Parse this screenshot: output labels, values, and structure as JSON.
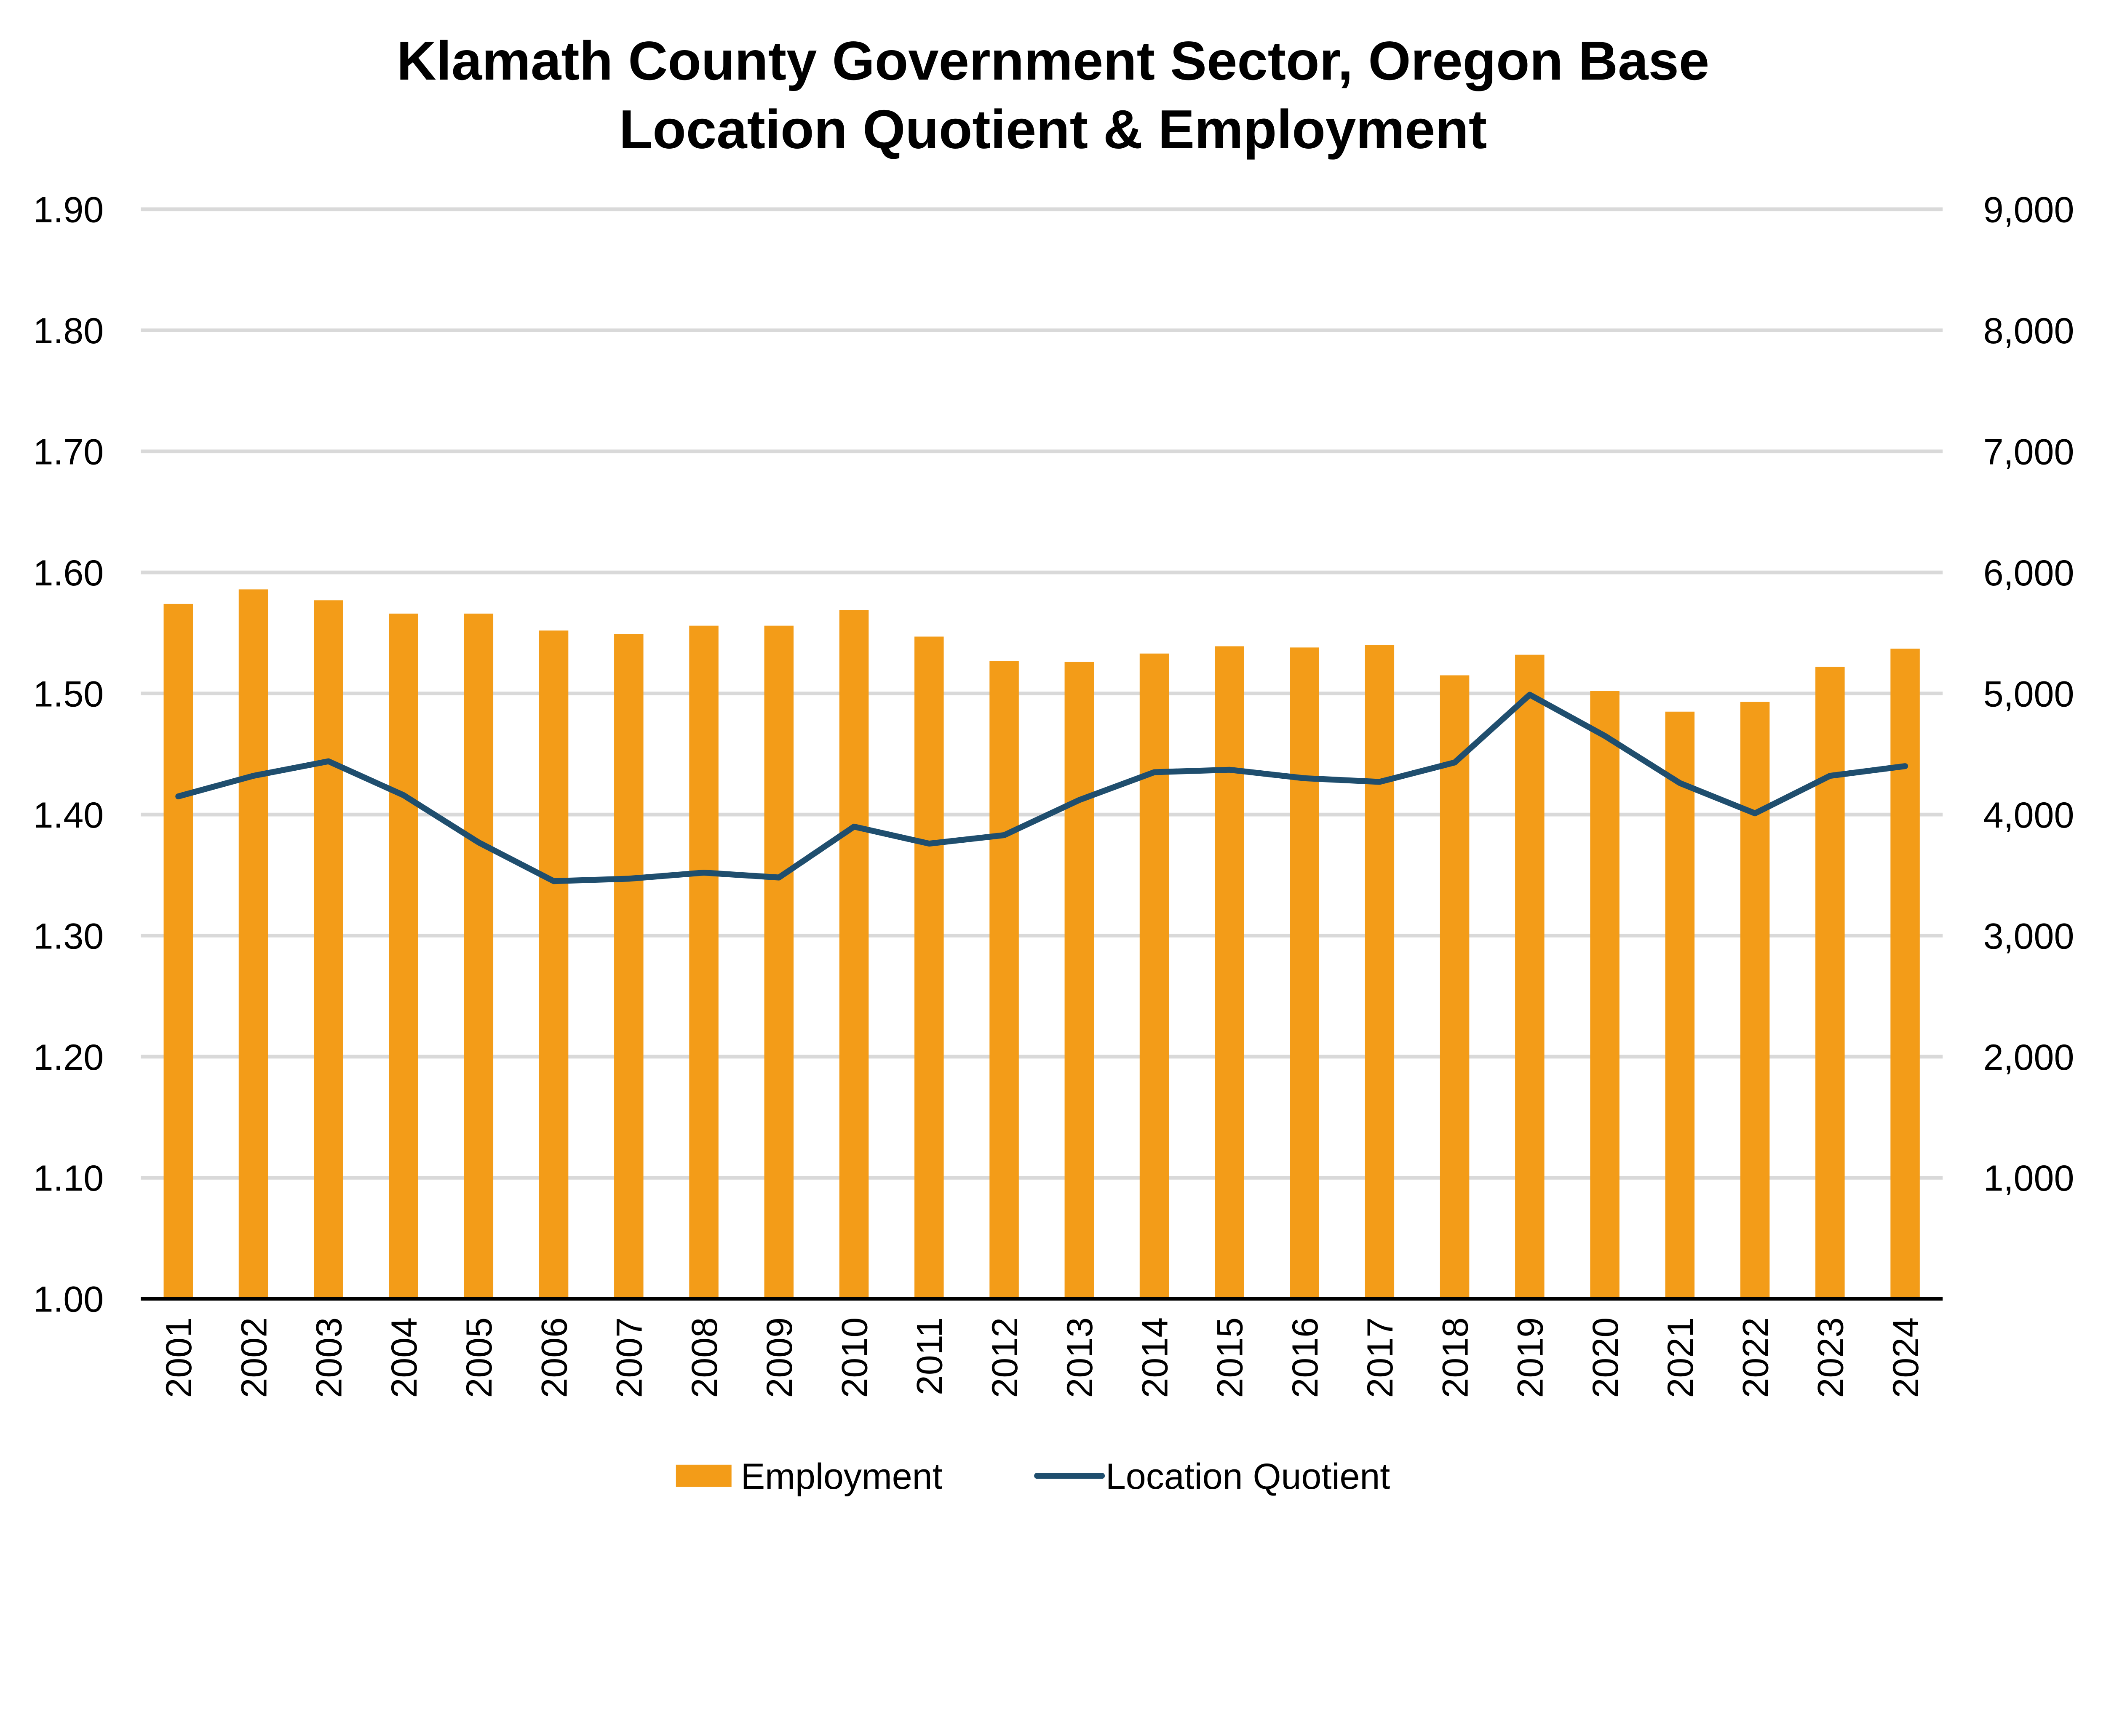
{
  "chart_data": {
    "type": "bar+line",
    "title_lines": [
      "Klamath County Government Sector, Oregon Base",
      "Location Quotient & Employment"
    ],
    "categories": [
      "2001",
      "2002",
      "2003",
      "2004",
      "2005",
      "2006",
      "2007",
      "2008",
      "2009",
      "2010",
      "2011",
      "2012",
      "2013",
      "2014",
      "2015",
      "2016",
      "2017",
      "2018",
      "2019",
      "2020",
      "2021",
      "2022",
      "2023",
      "2024"
    ],
    "series": [
      {
        "name": "Employment",
        "type": "bar",
        "axis": "right",
        "color": "#F39C18",
        "values": [
          5740,
          5860,
          5770,
          5660,
          5660,
          5520,
          5490,
          5560,
          5560,
          5690,
          5470,
          5270,
          5260,
          5330,
          5390,
          5380,
          5400,
          5150,
          5320,
          5020,
          4850,
          4930,
          5220,
          5370
        ]
      },
      {
        "name": "Location Quotient",
        "type": "line",
        "axis": "left",
        "color": "#1F4E6E",
        "values": [
          1.415,
          1.432,
          1.444,
          1.416,
          1.377,
          1.345,
          1.347,
          1.352,
          1.348,
          1.39,
          1.376,
          1.383,
          1.412,
          1.435,
          1.437,
          1.43,
          1.427,
          1.443,
          1.499,
          1.465,
          1.426,
          1.401,
          1.432,
          1.44
        ]
      }
    ],
    "left_axis": {
      "range": [
        1.0,
        1.9
      ],
      "ticks": [
        "1.00",
        "1.10",
        "1.20",
        "1.30",
        "1.40",
        "1.50",
        "1.60",
        "1.70",
        "1.80",
        "1.90"
      ]
    },
    "right_axis": {
      "range": [
        0,
        9000
      ],
      "ticks": [
        "",
        "1,000",
        "2,000",
        "3,000",
        "4,000",
        "5,000",
        "6,000",
        "7,000",
        "8,000",
        "9,000"
      ]
    },
    "grid": true,
    "gridline_color": "#D9D9D9",
    "legend_position": "bottom"
  }
}
